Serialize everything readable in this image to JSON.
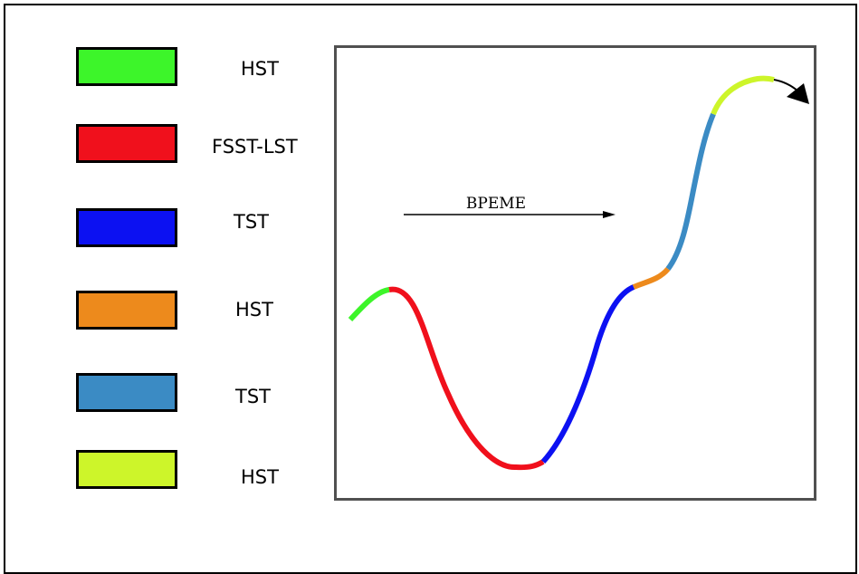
{
  "legend": {
    "items": [
      {
        "label": "HST",
        "color": "#3df52a"
      },
      {
        "label": "FSST-LST",
        "color": "#f0101c"
      },
      {
        "label": "TST",
        "color": "#0c11f2"
      },
      {
        "label": "HST",
        "color": "#ed8a1c"
      },
      {
        "label": "TST",
        "color": "#3b8bc4"
      },
      {
        "label": "HST",
        "color": "#cdf52a"
      }
    ]
  },
  "diagram": {
    "arrow_label": "ВРЕМЕ"
  }
}
